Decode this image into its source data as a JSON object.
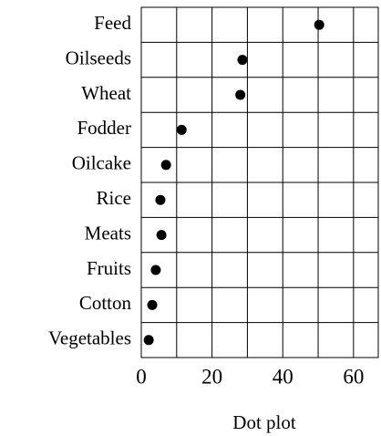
{
  "chart_data": {
    "type": "dot",
    "xlabel": "Dot plot",
    "categories": [
      "Feed",
      "Oilseeds",
      "Wheat",
      "Fodder",
      "Oilcake",
      "Rice",
      "Meats",
      "Fruits",
      "Cotton",
      "Vegetables"
    ],
    "values": [
      50.3,
      28.6,
      28,
      11.4,
      7,
      5.4,
      5.7,
      4.1,
      3.1,
      2.1
    ],
    "color": "#000000",
    "xlim": [
      0,
      67
    ],
    "xticks": [
      0,
      20,
      40,
      60
    ],
    "xgrid": [
      0,
      10,
      20,
      30,
      40,
      50,
      60
    ],
    "grid": true
  }
}
